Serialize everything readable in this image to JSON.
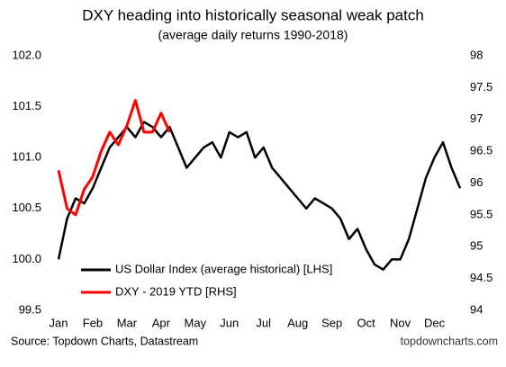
{
  "chart_data": {
    "type": "line",
    "title": "DXY heading into historically seasonal weak patch",
    "subtitle": "(average daily returns 1990-2018)",
    "source": "Source: Topdown Charts, Datastream",
    "watermark": "topdowncharts.com",
    "categories": [
      "Jan",
      null,
      null,
      null,
      "Feb",
      null,
      null,
      null,
      "Mar",
      null,
      null,
      null,
      "Apr",
      null,
      null,
      null,
      "May",
      null,
      null,
      null,
      "Jun",
      null,
      null,
      null,
      "Jul",
      null,
      null,
      null,
      "Aug",
      null,
      null,
      null,
      "Sep",
      null,
      null,
      null,
      "Oct",
      null,
      null,
      null,
      "Nov",
      null,
      null,
      null,
      "Dec",
      null,
      null,
      null
    ],
    "series": [
      {
        "name": "US Dollar Index (average historical) [LHS]",
        "color": "#000000",
        "values": [
          100.0,
          100.4,
          100.6,
          100.55,
          100.7,
          100.9,
          101.1,
          101.2,
          101.3,
          101.2,
          101.35,
          101.3,
          101.2,
          101.3,
          101.1,
          100.9,
          101.0,
          101.1,
          101.15,
          101.0,
          101.25,
          101.2,
          101.25,
          101.0,
          101.1,
          100.9,
          100.8,
          100.7,
          100.6,
          100.5,
          100.6,
          100.55,
          100.5,
          100.4,
          100.2,
          100.3,
          100.1,
          99.95,
          99.9,
          100.0,
          100.0,
          100.2,
          100.5,
          100.8,
          101.0,
          101.15,
          100.9,
          100.7
        ]
      },
      {
        "name": "DXY - 2019 YTD [RHS]",
        "color": "#ff0000",
        "axis": "y2",
        "values": [
          96.2,
          95.6,
          95.5,
          95.9,
          96.1,
          96.5,
          96.8,
          96.6,
          96.9,
          97.3,
          96.8,
          96.8,
          97.1,
          96.8,
          null,
          null,
          null,
          null,
          null,
          null,
          null,
          null,
          null,
          null,
          null,
          null,
          null,
          null,
          null,
          null,
          null,
          null,
          null,
          null,
          null,
          null,
          null,
          null,
          null,
          null,
          null,
          null,
          null,
          null,
          null,
          null,
          null,
          null
        ]
      }
    ],
    "ylim": [
      99.5,
      102.0
    ],
    "yticks": [
      99.5,
      {
        "value": 100,
        "label": "100.0"
      },
      100.5,
      {
        "value": 101,
        "label": "101.0"
      },
      101.5,
      {
        "value": 102,
        "label": "102.0"
      }
    ],
    "y2lim": [
      94,
      98
    ],
    "y2ticks": [
      94,
      94.5,
      95,
      95.5,
      96,
      96.5,
      97,
      97.5,
      98
    ],
    "grid": false
  }
}
